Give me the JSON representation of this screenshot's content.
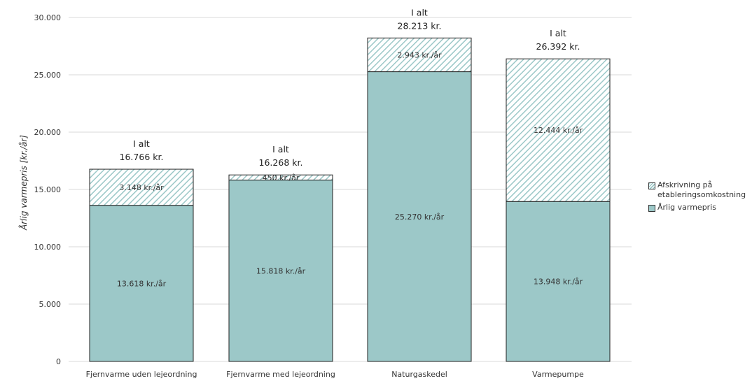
{
  "chart_data": {
    "type": "bar",
    "stacked": true,
    "title": "",
    "xlabel": "",
    "ylabel": "Årlig varmepris [kr./år]",
    "ylim": [
      0,
      30000
    ],
    "yticks": [
      0,
      5000,
      10000,
      15000,
      20000,
      25000,
      30000
    ],
    "ytick_labels": [
      "0",
      "5.000",
      "10.000",
      "15.000",
      "20.000",
      "25.000",
      "30.000"
    ],
    "grid": true,
    "legend_position": "right",
    "categories": [
      "Fjernvarme uden lejeordning",
      "Fjernvarme med lejeordning",
      "Naturgaskedel",
      "Varmepumpe"
    ],
    "series": [
      {
        "name": "Årlig varmepris",
        "values": [
          13618,
          15818,
          25270,
          13948
        ],
        "labels": [
          "13.618 kr./år",
          "15.818 kr./år",
          "25.270 kr./år",
          "13.948 kr./år"
        ],
        "color": "#9cc8c8",
        "pattern": "solid"
      },
      {
        "name": "Afskrivning på etableringsomkostning",
        "values": [
          3148,
          450,
          2943,
          12444
        ],
        "labels": [
          "3.148 kr./år",
          "450 kr./år",
          "2.943 kr./år",
          "12.444 kr./år"
        ],
        "color": "#9cc8c8",
        "pattern": "hatched"
      }
    ],
    "totals": [
      {
        "line1": "I alt",
        "line2": "16.766 kr.",
        "value": 16766
      },
      {
        "line1": "I alt",
        "line2": "16.268 kr.",
        "value": 16268
      },
      {
        "line1": "I alt",
        "line2": "28.213 kr.",
        "value": 28213
      },
      {
        "line1": "I alt",
        "line2": "26.392 kr.",
        "value": 26392
      }
    ]
  },
  "legend": {
    "items": [
      {
        "label": "Afskrivning på etableringsomkostning",
        "pattern": "hatched"
      },
      {
        "label": "Årlig varmepris",
        "pattern": "solid"
      }
    ]
  },
  "colors": {
    "bar_fill": "#9cc8c8",
    "hatch_stroke": "#9cc8c8",
    "bar_outline": "#222222",
    "grid": "#d9d9d9"
  }
}
